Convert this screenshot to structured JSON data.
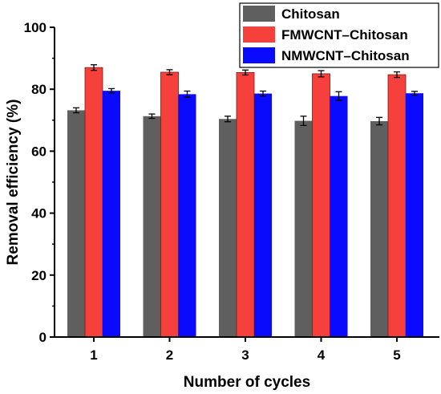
{
  "chart_data": {
    "type": "bar",
    "title": "",
    "xlabel": "Number of cycles",
    "ylabel": "Removal efficiency (%)",
    "categories": [
      "1",
      "2",
      "3",
      "4",
      "5"
    ],
    "ylim": [
      0,
      100
    ],
    "yticks": [
      "0",
      "20",
      "40",
      "60",
      "80",
      "100"
    ],
    "grid": false,
    "legend_position": "top-right",
    "series": [
      {
        "name": "Chitosan",
        "color": "#5f5f5f",
        "values": [
          73.2,
          71.3,
          70.4,
          69.8,
          69.7
        ],
        "errors": [
          0.8,
          0.7,
          0.9,
          1.5,
          1.2
        ]
      },
      {
        "name": "FMWCNT–Chitosan",
        "color": "#f5403b",
        "values": [
          87.0,
          85.5,
          85.4,
          85.0,
          84.7
        ],
        "errors": [
          0.9,
          0.8,
          0.8,
          1.0,
          0.9
        ]
      },
      {
        "name": "NMWCNT–Chitosan",
        "color": "#0a0aff",
        "values": [
          79.5,
          78.4,
          78.6,
          77.8,
          78.7
        ],
        "errors": [
          0.7,
          1.0,
          0.8,
          1.4,
          0.6
        ]
      }
    ]
  }
}
